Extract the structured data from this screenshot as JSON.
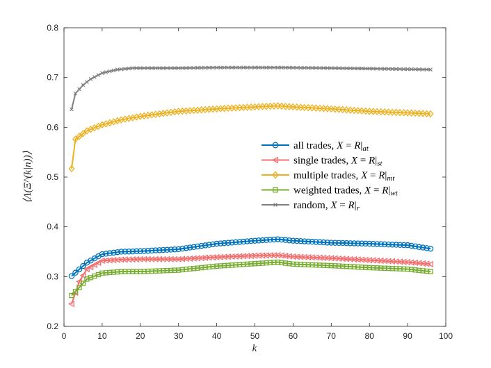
{
  "chart_data": {
    "type": "line",
    "xlabel": "k",
    "ylabel": "⟨Λ(Ξ^(k|n))⟩",
    "xlim": [
      0,
      100
    ],
    "ylim": [
      0.2,
      0.8
    ],
    "xticks": [
      "0",
      "10",
      "20",
      "30",
      "40",
      "50",
      "60",
      "70",
      "80",
      "90",
      "100"
    ],
    "yticks": [
      "0.2",
      "0.3",
      "0.4",
      "0.5",
      "0.6",
      "0.7",
      "0.8"
    ],
    "grid": false,
    "legend_position": "right",
    "series": [
      {
        "name": "all trades, X = R|at",
        "name_parts": [
          "all trades, ",
          "X",
          " = ",
          "R",
          "|",
          "at"
        ],
        "color": "#0072BD",
        "marker": "circle",
        "points": [
          [
            2,
            0.301
          ],
          [
            6,
            0.328
          ],
          [
            10,
            0.345
          ],
          [
            15,
            0.35
          ],
          [
            20,
            0.351
          ],
          [
            30,
            0.355
          ],
          [
            40,
            0.366
          ],
          [
            50,
            0.372
          ],
          [
            56,
            0.375
          ],
          [
            60,
            0.372
          ],
          [
            70,
            0.368
          ],
          [
            80,
            0.366
          ],
          [
            90,
            0.363
          ],
          [
            96,
            0.356
          ]
        ]
      },
      {
        "name": "single trades, X = R|st",
        "name_parts": [
          "single trades, ",
          "X",
          " = ",
          "R",
          "|",
          "st"
        ],
        "color": "#F27070",
        "marker": "triangle-left",
        "points": [
          [
            2,
            0.245
          ],
          [
            4,
            0.29
          ],
          [
            6,
            0.315
          ],
          [
            10,
            0.332
          ],
          [
            15,
            0.334
          ],
          [
            20,
            0.335
          ],
          [
            30,
            0.335
          ],
          [
            40,
            0.339
          ],
          [
            50,
            0.342
          ],
          [
            56,
            0.343
          ],
          [
            60,
            0.34
          ],
          [
            70,
            0.337
          ],
          [
            80,
            0.333
          ],
          [
            90,
            0.329
          ],
          [
            96,
            0.325
          ]
        ]
      },
      {
        "name": "multiple trades, X = R|mt",
        "name_parts": [
          "multiple trades, ",
          "X",
          " = ",
          "R",
          "|",
          "mt"
        ],
        "color": "#EDB120",
        "marker": "diamond",
        "points": [
          [
            2,
            0.517
          ],
          [
            3,
            0.576
          ],
          [
            6,
            0.593
          ],
          [
            10,
            0.605
          ],
          [
            15,
            0.615
          ],
          [
            20,
            0.622
          ],
          [
            30,
            0.632
          ],
          [
            40,
            0.637
          ],
          [
            50,
            0.641
          ],
          [
            56,
            0.643
          ],
          [
            60,
            0.641
          ],
          [
            70,
            0.637
          ],
          [
            80,
            0.632
          ],
          [
            90,
            0.629
          ],
          [
            96,
            0.627
          ]
        ]
      },
      {
        "name": "weighted trades, X = R|wt",
        "name_parts": [
          "weighted trades, ",
          "X",
          " = ",
          "R",
          "|",
          "wt"
        ],
        "color": "#77AC30",
        "marker": "square",
        "points": [
          [
            2,
            0.262
          ],
          [
            4,
            0.278
          ],
          [
            6,
            0.295
          ],
          [
            10,
            0.307
          ],
          [
            15,
            0.31
          ],
          [
            20,
            0.31
          ],
          [
            30,
            0.313
          ],
          [
            40,
            0.321
          ],
          [
            50,
            0.326
          ],
          [
            56,
            0.329
          ],
          [
            60,
            0.325
          ],
          [
            70,
            0.322
          ],
          [
            80,
            0.318
          ],
          [
            90,
            0.315
          ],
          [
            96,
            0.31
          ]
        ]
      },
      {
        "name": "random, X = R|r",
        "name_parts": [
          "random, ",
          "X",
          " = ",
          "R",
          "|",
          "r"
        ],
        "color": "#7F7F7F",
        "marker": "x",
        "points": [
          [
            2,
            0.636
          ],
          [
            3,
            0.668
          ],
          [
            5,
            0.685
          ],
          [
            7,
            0.697
          ],
          [
            10,
            0.709
          ],
          [
            14,
            0.716
          ],
          [
            18,
            0.719
          ],
          [
            30,
            0.719
          ],
          [
            40,
            0.72
          ],
          [
            56,
            0.72
          ],
          [
            70,
            0.719
          ],
          [
            80,
            0.718
          ],
          [
            96,
            0.716
          ]
        ]
      }
    ]
  }
}
